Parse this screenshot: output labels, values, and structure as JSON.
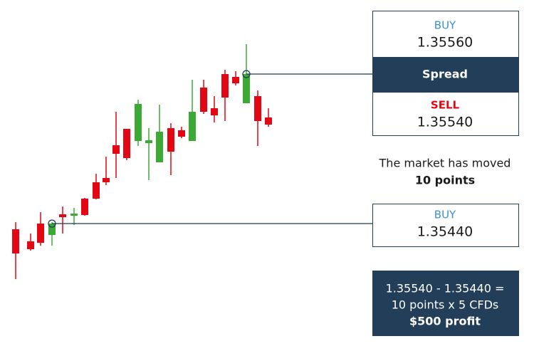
{
  "exit_quote": {
    "buy_label": "BUY",
    "buy_price": "1.35560",
    "spread_label": "Spread",
    "sell_label": "SELL",
    "sell_price": "1.35540"
  },
  "message": {
    "line1": "The market has moved",
    "line2": "10 points"
  },
  "entry_quote": {
    "buy_label": "BUY",
    "buy_price": "1.35440"
  },
  "result": {
    "line1": "1.35540 - 1.35440 =",
    "line2": "10 points x 5 CFDs",
    "line3": "$500 profit"
  }
}
